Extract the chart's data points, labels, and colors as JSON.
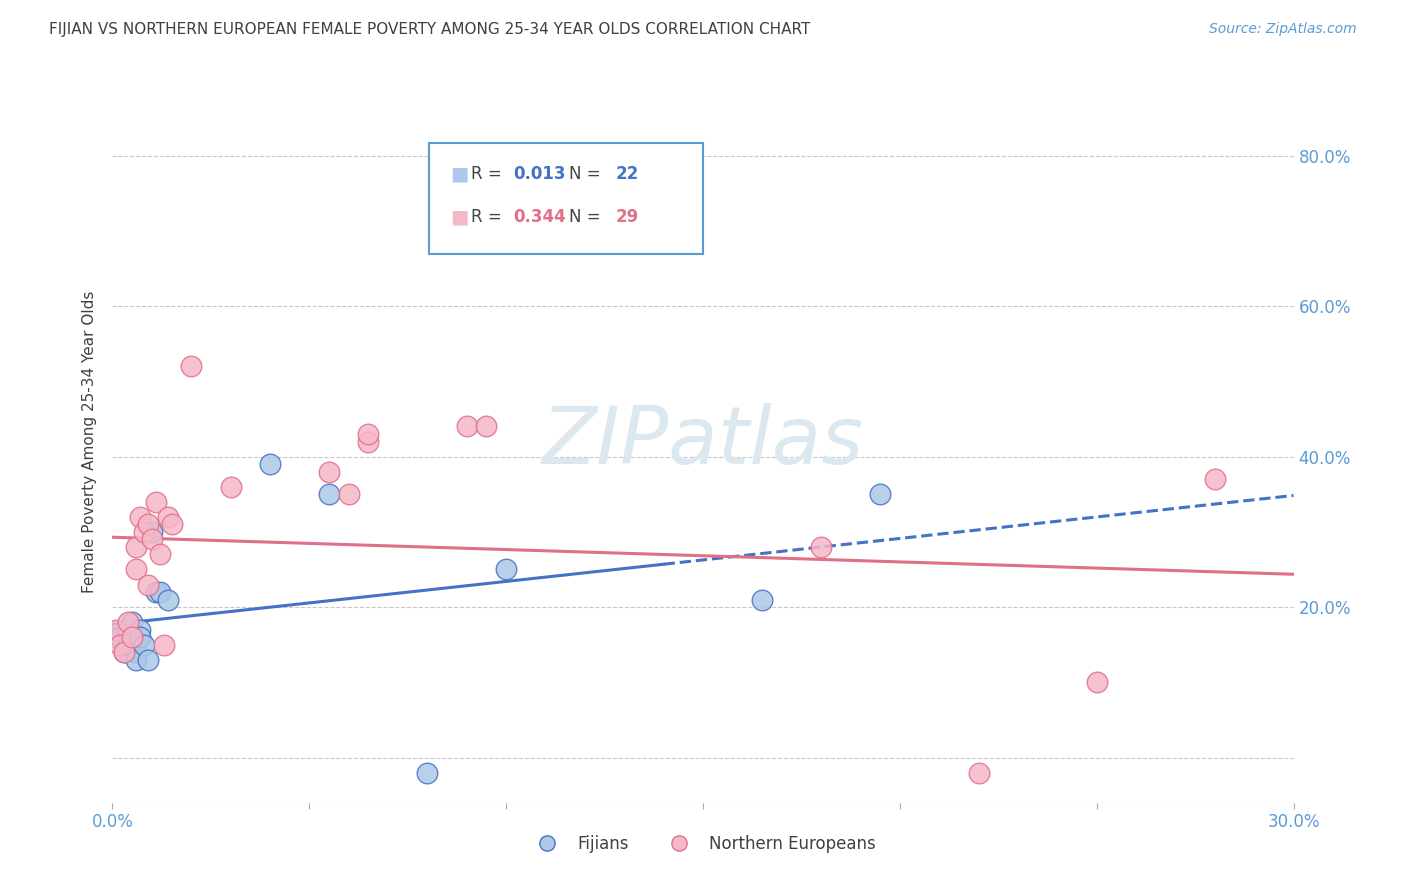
{
  "title": "FIJIAN VS NORTHERN EUROPEAN FEMALE POVERTY AMONG 25-34 YEAR OLDS CORRELATION CHART",
  "source": "Source: ZipAtlas.com",
  "ylabel": "Female Poverty Among 25-34 Year Olds",
  "xlim": [
    0.0,
    0.3
  ],
  "ylim": [
    -0.06,
    0.9
  ],
  "yticks": [
    0.0,
    0.2,
    0.4,
    0.6,
    0.8
  ],
  "ytick_labels": [
    "",
    "20.0%",
    "40.0%",
    "60.0%",
    "80.0%"
  ],
  "fijian_color": "#adc8e8",
  "northern_color": "#f5b8c8",
  "fijian_R": "0.013",
  "fijian_N": "22",
  "northern_R": "0.344",
  "northern_N": "29",
  "fijian_x": [
    0.001,
    0.002,
    0.003,
    0.004,
    0.004,
    0.005,
    0.006,
    0.006,
    0.007,
    0.007,
    0.008,
    0.009,
    0.01,
    0.011,
    0.012,
    0.014,
    0.04,
    0.055,
    0.08,
    0.1,
    0.165,
    0.195
  ],
  "fijian_y": [
    0.16,
    0.16,
    0.14,
    0.15,
    0.17,
    0.18,
    0.14,
    0.13,
    0.17,
    0.16,
    0.15,
    0.13,
    0.3,
    0.22,
    0.22,
    0.21,
    0.39,
    0.35,
    -0.02,
    0.25,
    0.21,
    0.35
  ],
  "northern_x": [
    0.001,
    0.002,
    0.003,
    0.004,
    0.005,
    0.006,
    0.006,
    0.007,
    0.008,
    0.009,
    0.009,
    0.01,
    0.011,
    0.012,
    0.013,
    0.014,
    0.015,
    0.02,
    0.03,
    0.055,
    0.06,
    0.065,
    0.065,
    0.09,
    0.095,
    0.18,
    0.22,
    0.25,
    0.28
  ],
  "northern_y": [
    0.17,
    0.15,
    0.14,
    0.18,
    0.16,
    0.28,
    0.25,
    0.32,
    0.3,
    0.23,
    0.31,
    0.29,
    0.34,
    0.27,
    0.15,
    0.32,
    0.31,
    0.52,
    0.36,
    0.38,
    0.35,
    0.42,
    0.43,
    0.44,
    0.44,
    0.28,
    -0.02,
    0.1,
    0.37
  ],
  "background_color": "#ffffff",
  "grid_color": "#c8c8c8",
  "title_color": "#404040",
  "right_label_color": "#5b9bd5",
  "watermark_color": "#dce8f0",
  "fijian_line_color": "#4472c4",
  "northern_line_color": "#e07088",
  "legend_border_color": "#5b9bd5"
}
